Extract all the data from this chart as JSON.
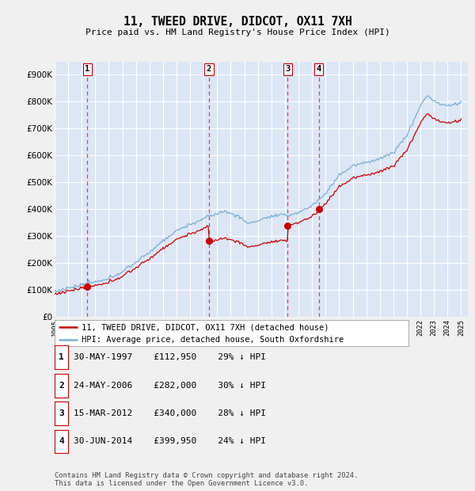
{
  "title": "11, TWEED DRIVE, DIDCOT, OX11 7XH",
  "subtitle": "Price paid vs. HM Land Registry's House Price Index (HPI)",
  "legend_label_red": "11, TWEED DRIVE, DIDCOT, OX11 7XH (detached house)",
  "legend_label_blue": "HPI: Average price, detached house, South Oxfordshire",
  "footer": "Contains HM Land Registry data © Crown copyright and database right 2024.\nThis data is licensed under the Open Government Licence v3.0.",
  "transactions": [
    {
      "num": 1,
      "date": "30-MAY-1997",
      "price": 112950,
      "pct": "29%",
      "year": 1997.41
    },
    {
      "num": 2,
      "date": "24-MAY-2006",
      "price": 282000,
      "pct": "30%",
      "year": 2006.39
    },
    {
      "num": 3,
      "date": "15-MAR-2012",
      "price": 340000,
      "pct": "28%",
      "year": 2012.2
    },
    {
      "num": 4,
      "date": "30-JUN-2014",
      "price": 399950,
      "pct": "24%",
      "year": 2014.5
    }
  ],
  "ylim": [
    0,
    950000
  ],
  "xlim_start": 1995.0,
  "xlim_end": 2025.5,
  "fig_bg_color": "#f0f0f0",
  "plot_bg_color": "#dce6f5",
  "grid_color": "#ffffff",
  "red_line_color": "#cc0000",
  "blue_line_color": "#7aaed6",
  "dashed_color": "#dd4444",
  "legend_border_color": "#aaaaaa",
  "num_box_border": "#cc0000"
}
